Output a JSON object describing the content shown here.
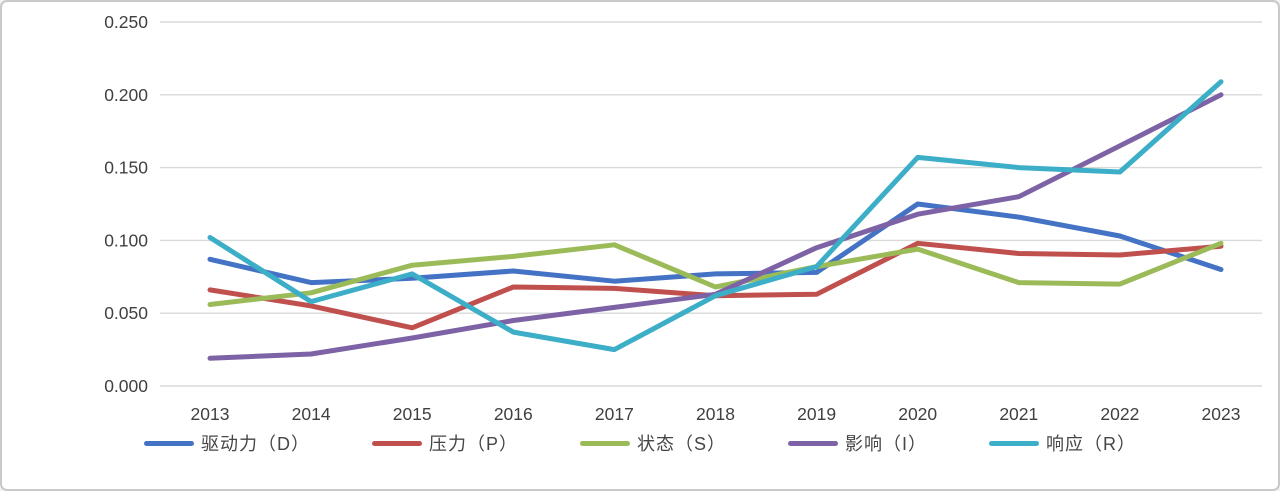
{
  "chart_data": {
    "type": "line",
    "title": "",
    "xlabel": "",
    "ylabel": "",
    "categories": [
      "2013",
      "2014",
      "2015",
      "2016",
      "2017",
      "2018",
      "2019",
      "2020",
      "2021",
      "2022",
      "2023"
    ],
    "series": [
      {
        "name": "驱动力（D）",
        "color": "#4472C4",
        "values": [
          0.087,
          0.071,
          0.074,
          0.079,
          0.072,
          0.077,
          0.078,
          0.125,
          0.116,
          0.103,
          0.08
        ]
      },
      {
        "name": "压力（P）",
        "color": "#C0504D",
        "values": [
          0.066,
          0.055,
          0.04,
          0.068,
          0.067,
          0.062,
          0.063,
          0.098,
          0.091,
          0.09,
          0.096
        ]
      },
      {
        "name": "状态（S）",
        "color": "#9BBB59",
        "values": [
          0.056,
          0.064,
          0.083,
          0.089,
          0.097,
          0.068,
          0.082,
          0.094,
          0.071,
          0.07,
          0.098
        ]
      },
      {
        "name": "影响（I）",
        "color": "#7D62A5",
        "values": [
          0.019,
          0.022,
          0.033,
          0.045,
          0.054,
          0.063,
          0.095,
          0.118,
          0.13,
          0.165,
          0.2
        ]
      },
      {
        "name": "响应（R）",
        "color": "#3CAEC7",
        "values": [
          0.102,
          0.058,
          0.077,
          0.037,
          0.025,
          0.062,
          0.082,
          0.157,
          0.15,
          0.147,
          0.209
        ]
      }
    ],
    "ylim": [
      0,
      0.25
    ],
    "ytick_step": 0.05,
    "ytick_labels": [
      "0.000",
      "0.050",
      "0.100",
      "0.150",
      "0.200",
      "0.250"
    ],
    "grid": true,
    "legend_position": "bottom",
    "colors": {
      "background": "#FFFFFF",
      "gridline": "#D9D9D9",
      "tick_text": "#404040"
    }
  }
}
